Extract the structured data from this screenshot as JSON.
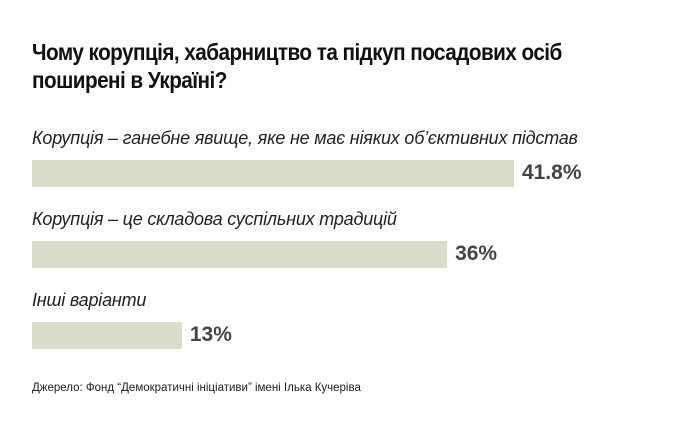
{
  "chart_data": {
    "type": "bar",
    "orientation": "horizontal",
    "title": "Чому корупція, хабарництво та підкуп посадових осіб поширені в Україні?",
    "categories": [
      "Корупція – ганебне явище, яке не має ніяких об’єктивних підстав",
      "Корупція – це складова суспільних традицій",
      "Інші варіанти"
    ],
    "values": [
      41.8,
      36,
      13
    ],
    "value_labels": [
      "41.8%",
      "36%",
      "13%"
    ],
    "unit": "%",
    "bar_color": "#dcdccd",
    "grid": false,
    "source": "Джерело: Фонд “Демократичні ініціативи” імені Ілька Кучеріва"
  }
}
